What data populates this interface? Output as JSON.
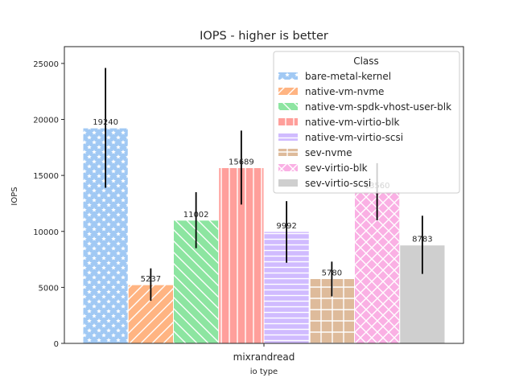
{
  "chart_data": {
    "type": "bar",
    "title": "IOPS - higher is better",
    "xlabel": "io type",
    "ylabel": "IOPS",
    "categories": [
      "mixrandread"
    ],
    "ylim": [
      0,
      26500
    ],
    "yticks": [
      0,
      5000,
      10000,
      15000,
      20000,
      25000
    ],
    "ytick_labels": [
      "0",
      "5000",
      "10000",
      "15000",
      "20000",
      "25000"
    ],
    "legend": {
      "title": "Class",
      "placement": "top-right"
    },
    "series": [
      {
        "name": "bare-metal-kernel",
        "value": 19240,
        "label": "19240",
        "err_low": 13900,
        "err_high": 24600,
        "color": "#a1c9f4",
        "hatch": "stars"
      },
      {
        "name": "native-vm-nvme",
        "value": 5237,
        "label": "5237",
        "err_low": 3800,
        "err_high": 6700,
        "color": "#ffb482",
        "hatch": "forward"
      },
      {
        "name": "native-vm-spdk-vhost-user-blk",
        "value": 11002,
        "label": "11002",
        "err_low": 8500,
        "err_high": 13500,
        "color": "#8de5a1",
        "hatch": "backward"
      },
      {
        "name": "native-vm-virtio-blk",
        "value": 15689,
        "label": "15689",
        "err_low": 12400,
        "err_high": 19000,
        "color": "#ff9f9b",
        "hatch": "vertical"
      },
      {
        "name": "native-vm-virtio-scsi",
        "value": 9992,
        "label": "9992",
        "err_low": 7200,
        "err_high": 12700,
        "color": "#d0bbff",
        "hatch": "horizontal"
      },
      {
        "name": "sev-nvme",
        "value": 5780,
        "label": "5780",
        "err_low": 4200,
        "err_high": 7300,
        "color": "#debb9b",
        "hatch": "grid"
      },
      {
        "name": "sev-virtio-blk",
        "value": 13560,
        "label": "13560",
        "err_low": 11000,
        "err_high": 16100,
        "color": "#fab0e4",
        "hatch": "cross"
      },
      {
        "name": "sev-virtio-scsi",
        "value": 8783,
        "label": "8783",
        "err_low": 6200,
        "err_high": 11400,
        "color": "#cfcfcf",
        "hatch": "none"
      }
    ]
  }
}
